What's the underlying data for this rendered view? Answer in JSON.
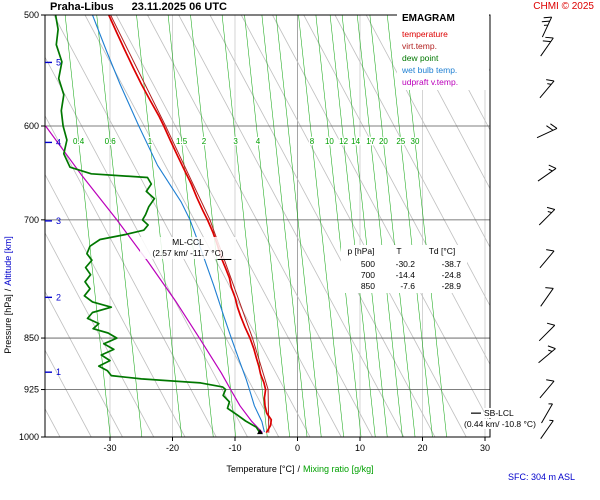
{
  "header": {
    "station": "Praha-Libus",
    "datetime": "23.11.2025 06 UTC",
    "copyright": "CHMI © 2025"
  },
  "legend": {
    "title": "EMAGRAM",
    "items": [
      {
        "label": "temperature",
        "color": "#dd0000"
      },
      {
        "label": "virt.temp.",
        "color": "#b22222"
      },
      {
        "label": "dew point",
        "color": "#007700"
      },
      {
        "label": "wet bulb temp.",
        "color": "#1e7fd2"
      },
      {
        "label": "udpraft v.temp.",
        "color": "#bb00bb"
      }
    ]
  },
  "axes": {
    "separator": "/",
    "pressure": {
      "label": "Pressure [hPa]",
      "ticks": [
        500,
        600,
        700,
        850,
        925,
        1000
      ]
    },
    "altitude": {
      "label": "Altitude [km]",
      "color": "#0000cc",
      "ticks": [
        1,
        2,
        3,
        4,
        5
      ]
    },
    "temperature": {
      "label": "Temperature [°C]",
      "ticks": [
        -30,
        -20,
        -10,
        0,
        10,
        20,
        30
      ]
    },
    "mixing_ratio": {
      "label": "Mixing ratio [g/kg]",
      "color": "#00a000",
      "labeled_lines": [
        0.4,
        0.6,
        1,
        1.5,
        2,
        3,
        4,
        8,
        10,
        12,
        14,
        17,
        20,
        25,
        30
      ],
      "all_lines": [
        0.4,
        0.6,
        1,
        1.5,
        2,
        3,
        4,
        5,
        6,
        8,
        10,
        12,
        14,
        17,
        20,
        25,
        30
      ]
    }
  },
  "annotations": {
    "ml_ccl": {
      "label": "ML-CCL",
      "detail": "(2.57 km/ -11.7 °C)",
      "pressure_hpa": 747,
      "temp_c": -11.7
    },
    "sb_lcl": {
      "label": "SB-LCL",
      "detail": "(0.44 km/ -10.8 °C)",
      "pressure_hpa": 960,
      "temp_c": -10.8
    },
    "surface": "SFC: 304 m ASL"
  },
  "table": {
    "header": [
      "p [hPa]",
      "T",
      "Td [°C]"
    ],
    "rows": [
      [
        "500",
        "-30.2",
        "-38.7"
      ],
      [
        "700",
        "-14.4",
        "-24.8"
      ],
      [
        "850",
        "-7.6",
        "-28.9"
      ]
    ]
  },
  "chart_data": {
    "type": "line",
    "title": "EMAGRAM sounding — Praha-Libus 23.11.2025 06 UTC",
    "x_axis": {
      "label": "Temperature [°C]",
      "range": [
        -40,
        31
      ],
      "ticks": [
        -30,
        -20,
        -10,
        0,
        10,
        20,
        30
      ]
    },
    "y_axis": {
      "label": "Pressure [hPa]",
      "range": [
        1000,
        500
      ],
      "scale": "log",
      "ticks": [
        500,
        600,
        700,
        850,
        925,
        1000
      ]
    },
    "surface_elevation_m": 304,
    "series": [
      {
        "key": "temperature",
        "name": "temperature",
        "color": "#dd0000",
        "points": [
          [
            500,
            -30.2
          ],
          [
            515,
            -28.9
          ],
          [
            530,
            -27.6
          ],
          [
            545,
            -26.3
          ],
          [
            560,
            -25.0
          ],
          [
            575,
            -23.6
          ],
          [
            590,
            -22.2
          ],
          [
            600,
            -21.4
          ],
          [
            615,
            -20.3
          ],
          [
            630,
            -19.2
          ],
          [
            645,
            -18.1
          ],
          [
            660,
            -17.0
          ],
          [
            675,
            -16.1
          ],
          [
            690,
            -15.1
          ],
          [
            700,
            -14.4
          ],
          [
            715,
            -13.5
          ],
          [
            730,
            -12.8
          ],
          [
            745,
            -12.2
          ],
          [
            758,
            -11.5
          ],
          [
            770,
            -10.9
          ],
          [
            782,
            -10.6
          ],
          [
            795,
            -10.0
          ],
          [
            808,
            -9.6
          ],
          [
            820,
            -9.1
          ],
          [
            835,
            -8.4
          ],
          [
            850,
            -7.6
          ],
          [
            865,
            -7.0
          ],
          [
            878,
            -6.6
          ],
          [
            890,
            -6.2
          ],
          [
            902,
            -5.9
          ],
          [
            914,
            -5.4
          ],
          [
            925,
            -5.1
          ],
          [
            938,
            -5.3
          ],
          [
            950,
            -5.2
          ],
          [
            962,
            -4.9
          ],
          [
            972,
            -4.2
          ],
          [
            981,
            -4.3
          ],
          [
            988,
            -4.7
          ],
          [
            993,
            -5.0
          ]
        ]
      },
      {
        "key": "virt_temp",
        "name": "virt.temp.",
        "color": "#b22222",
        "points": [
          [
            500,
            -29.9
          ],
          [
            600,
            -21.1
          ],
          [
            700,
            -14.0
          ],
          [
            850,
            -7.2
          ],
          [
            925,
            -4.7
          ],
          [
            993,
            -4.6
          ]
        ]
      },
      {
        "key": "dew_point",
        "name": "dew point",
        "color": "#007700",
        "points": [
          [
            500,
            -38.7
          ],
          [
            512,
            -38.3
          ],
          [
            525,
            -38.6
          ],
          [
            540,
            -37.7
          ],
          [
            555,
            -38.2
          ],
          [
            570,
            -37.4
          ],
          [
            585,
            -37.8
          ],
          [
            600,
            -37.5
          ],
          [
            614,
            -36.9
          ],
          [
            628,
            -37.4
          ],
          [
            642,
            -36.4
          ],
          [
            649,
            -33.0
          ],
          [
            653,
            -24.0
          ],
          [
            660,
            -23.4
          ],
          [
            668,
            -24.2
          ],
          [
            676,
            -22.9
          ],
          [
            685,
            -23.8
          ],
          [
            694,
            -24.3
          ],
          [
            700,
            -24.8
          ],
          [
            706,
            -23.9
          ],
          [
            712,
            -24.6
          ],
          [
            717,
            -27.5
          ],
          [
            723,
            -31.6
          ],
          [
            731,
            -33.2
          ],
          [
            740,
            -33.7
          ],
          [
            748,
            -32.9
          ],
          [
            757,
            -33.9
          ],
          [
            766,
            -33.1
          ],
          [
            775,
            -34.0
          ],
          [
            784,
            -33.2
          ],
          [
            793,
            -34.1
          ],
          [
            801,
            -32.8
          ],
          [
            808,
            -29.8
          ],
          [
            815,
            -32.8
          ],
          [
            823,
            -33.6
          ],
          [
            830,
            -31.8
          ],
          [
            837,
            -32.7
          ],
          [
            843,
            -30.3
          ],
          [
            850,
            -28.9
          ],
          [
            858,
            -31.0
          ],
          [
            866,
            -29.4
          ],
          [
            874,
            -31.4
          ],
          [
            882,
            -30.0
          ],
          [
            890,
            -31.8
          ],
          [
            897,
            -30.4
          ],
          [
            904,
            -29.8
          ],
          [
            909,
            -25.0
          ],
          [
            915,
            -15.5
          ],
          [
            921,
            -12.0
          ],
          [
            925,
            -11.5
          ],
          [
            934,
            -11.9
          ],
          [
            944,
            -10.9
          ],
          [
            954,
            -11.2
          ],
          [
            964,
            -9.7
          ],
          [
            974,
            -8.3
          ],
          [
            984,
            -6.6
          ],
          [
            992,
            -6.1
          ]
        ]
      },
      {
        "key": "wet_bulb",
        "name": "wet bulb temp.",
        "color": "#1e7fd2",
        "points": [
          [
            500,
            -32.8
          ],
          [
            530,
            -30.6
          ],
          [
            560,
            -28.4
          ],
          [
            600,
            -25.4
          ],
          [
            640,
            -22.4
          ],
          [
            680,
            -18.6
          ],
          [
            700,
            -17.2
          ],
          [
            740,
            -15.2
          ],
          [
            780,
            -13.4
          ],
          [
            820,
            -11.8
          ],
          [
            850,
            -10.6
          ],
          [
            880,
            -9.4
          ],
          [
            910,
            -8.2
          ],
          [
            925,
            -7.7
          ],
          [
            950,
            -6.9
          ],
          [
            975,
            -5.7
          ],
          [
            992,
            -5.3
          ]
        ]
      },
      {
        "key": "updraft_v_temp",
        "name": "udpraft v.temp.",
        "color": "#bb00bb",
        "points": [
          [
            600,
            -40.3
          ],
          [
            650,
            -34.6
          ],
          [
            700,
            -28.9
          ],
          [
            750,
            -23.9
          ],
          [
            800,
            -19.5
          ],
          [
            850,
            -15.7
          ],
          [
            900,
            -12.2
          ],
          [
            925,
            -10.7
          ],
          [
            950,
            -9.2
          ],
          [
            975,
            -7.3
          ],
          [
            993,
            -5.6
          ]
        ]
      }
    ],
    "markers": [
      {
        "name": "ML-CCL",
        "pressure_hpa": 747,
        "temp_c": -11.7,
        "altitude_km": 2.57
      },
      {
        "name": "SB-LCL",
        "pressure_hpa": 960,
        "temp_c": -10.8,
        "altitude_km": 0.44
      },
      {
        "name": "surface",
        "pressure_hpa": 992,
        "temp_c": -6.0
      }
    ],
    "wind_barbs": [
      {
        "pressure": 510,
        "speed_kt": 25,
        "staff_angle_deg": 65
      },
      {
        "pressure": 527,
        "speed_kt": 20,
        "staff_angle_deg": 55
      },
      {
        "pressure": 565,
        "speed_kt": 15,
        "staff_angle_deg": 50
      },
      {
        "pressure": 607,
        "speed_kt": 20,
        "staff_angle_deg": 25
      },
      {
        "pressure": 650,
        "speed_kt": 15,
        "staff_angle_deg": 35
      },
      {
        "pressure": 697,
        "speed_kt": 15,
        "staff_angle_deg": 45
      },
      {
        "pressure": 747,
        "speed_kt": 10,
        "staff_angle_deg": 50
      },
      {
        "pressure": 795,
        "speed_kt": 10,
        "staff_angle_deg": 55
      },
      {
        "pressure": 843,
        "speed_kt": 10,
        "staff_angle_deg": 45
      },
      {
        "pressure": 875,
        "speed_kt": 15,
        "staff_angle_deg": 40
      },
      {
        "pressure": 925,
        "speed_kt": 10,
        "staff_angle_deg": 50
      },
      {
        "pressure": 962,
        "speed_kt": 5,
        "staff_angle_deg": 60
      },
      {
        "pressure": 988,
        "speed_kt": 5,
        "staff_angle_deg": 55
      }
    ]
  }
}
